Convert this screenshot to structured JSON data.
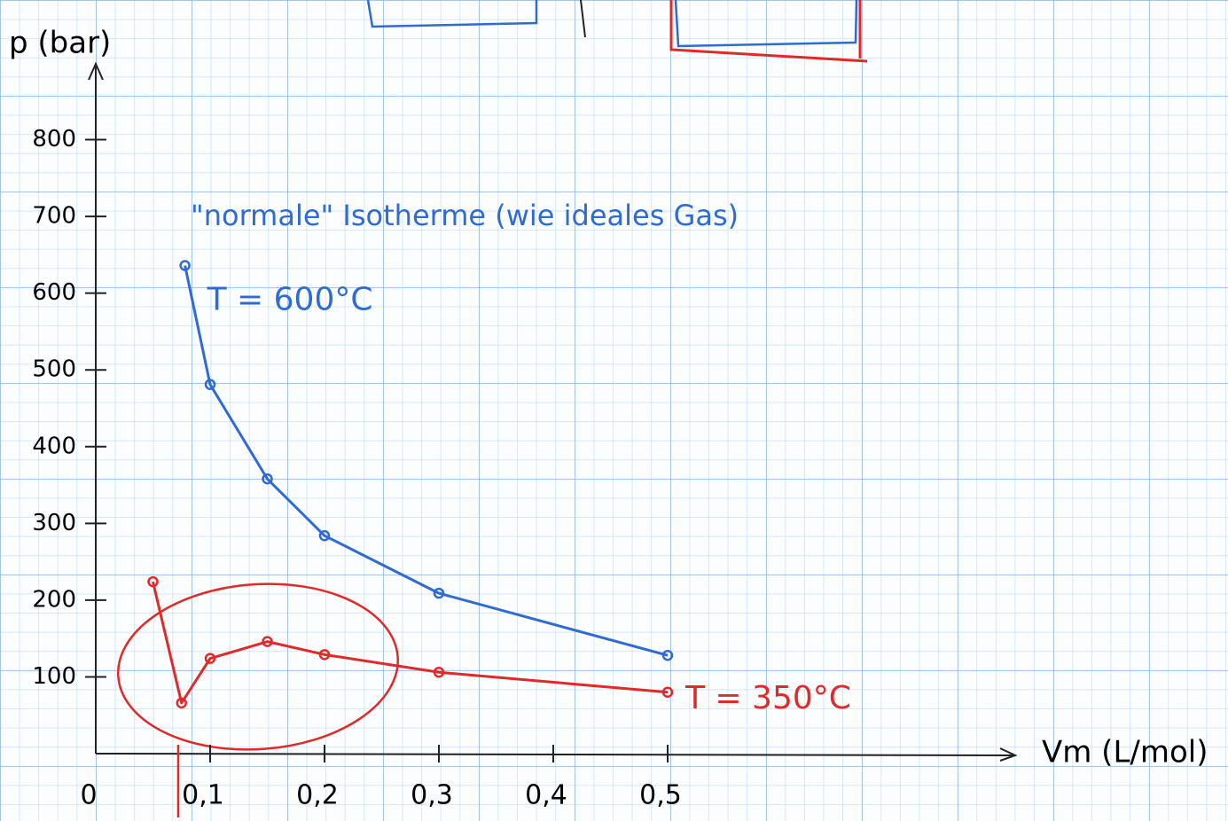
{
  "chart_data": {
    "type": "line",
    "y_label": "p (bar)",
    "x_label": "Vm (L/mol)",
    "annotation": "\"normale\" Isotherme  (wie ideales Gas)",
    "xlim": [
      0,
      0.8
    ],
    "ylim": [
      0,
      900
    ],
    "xticks": [
      {
        "value": 0,
        "label": "0"
      },
      {
        "value": 0.1,
        "label": "0,1"
      },
      {
        "value": 0.2,
        "label": "0,2"
      },
      {
        "value": 0.3,
        "label": "0,3"
      },
      {
        "value": 0.4,
        "label": "0,4"
      },
      {
        "value": 0.5,
        "label": "0,5"
      }
    ],
    "yticks": [
      100,
      200,
      300,
      400,
      500,
      600,
      700,
      800
    ],
    "series": [
      {
        "name": "T = 600°C",
        "color": "#2f6bd0",
        "x": [
          0.078,
          0.1,
          0.15,
          0.2,
          0.3,
          0.5
        ],
        "values": [
          636,
          481,
          358,
          284,
          209,
          128
        ]
      },
      {
        "name": "T = 350°C",
        "color": "#e02a2a",
        "x": [
          0.05,
          0.075,
          0.1,
          0.15,
          0.2,
          0.3,
          0.5
        ],
        "values": [
          224,
          66,
          124,
          146,
          129,
          106,
          80
        ]
      }
    ]
  }
}
